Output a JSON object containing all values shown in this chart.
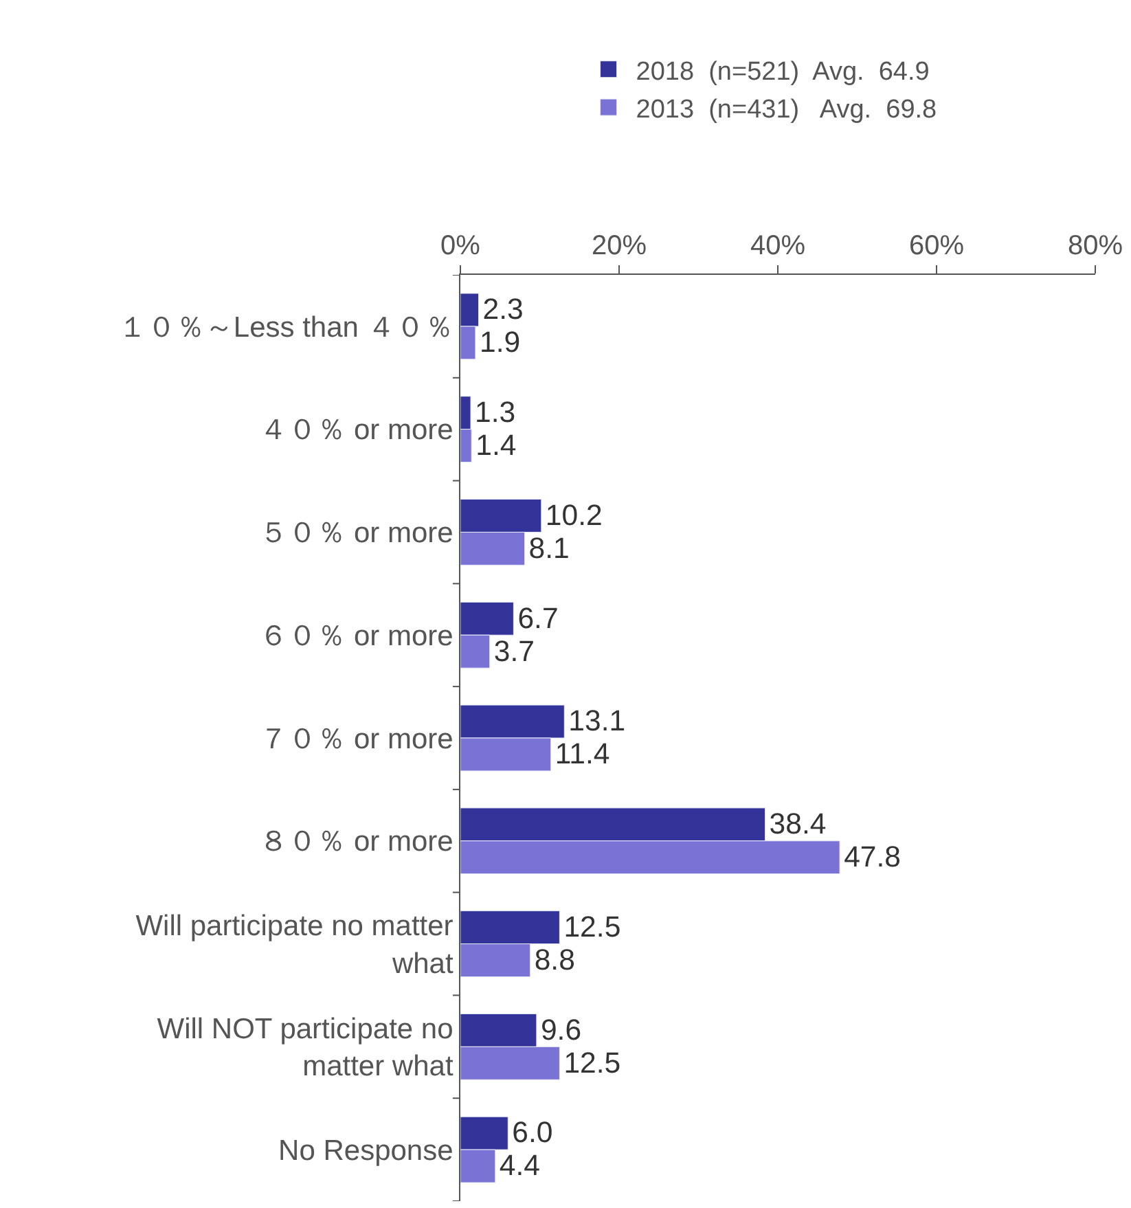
{
  "chart_data": {
    "type": "bar",
    "orientation": "horizontal",
    "categories": [
      "１０％～Less than ４０％",
      "４０％ or more",
      "５０％ or more",
      "６０％ or more",
      "７０％ or more",
      "８０％ or more",
      "Will participate no matter what",
      "Will NOT participate no matter what",
      "No Response"
    ],
    "series": [
      {
        "name": "2018  (n=521)  Avg.  64.9",
        "color": "#333399",
        "values": [
          2.3,
          1.3,
          10.2,
          6.7,
          13.1,
          38.4,
          12.5,
          9.6,
          6.0
        ],
        "value_labels": [
          "2.3",
          "1.3",
          "10.2",
          "6.7",
          "13.1",
          "38.4",
          "12.5",
          "9.6",
          "6.0"
        ]
      },
      {
        "name": "2013  (n=431)   Avg.  69.8",
        "color": "#7b72d6",
        "values": [
          1.9,
          1.4,
          8.1,
          3.7,
          11.4,
          47.8,
          8.8,
          12.5,
          4.4
        ],
        "value_labels": [
          "1.9",
          "1.4",
          "8.1",
          "3.7",
          "11.4",
          "47.8",
          "8.8",
          "12.5",
          "4.4"
        ]
      }
    ],
    "xlim": [
      0,
      80
    ],
    "xticks": [
      {
        "value": 0,
        "label": "0%"
      },
      {
        "value": 20,
        "label": "20%"
      },
      {
        "value": 40,
        "label": "40%"
      },
      {
        "value": 60,
        "label": "60%"
      },
      {
        "value": 80,
        "label": "80%"
      }
    ],
    "legend": "top"
  }
}
